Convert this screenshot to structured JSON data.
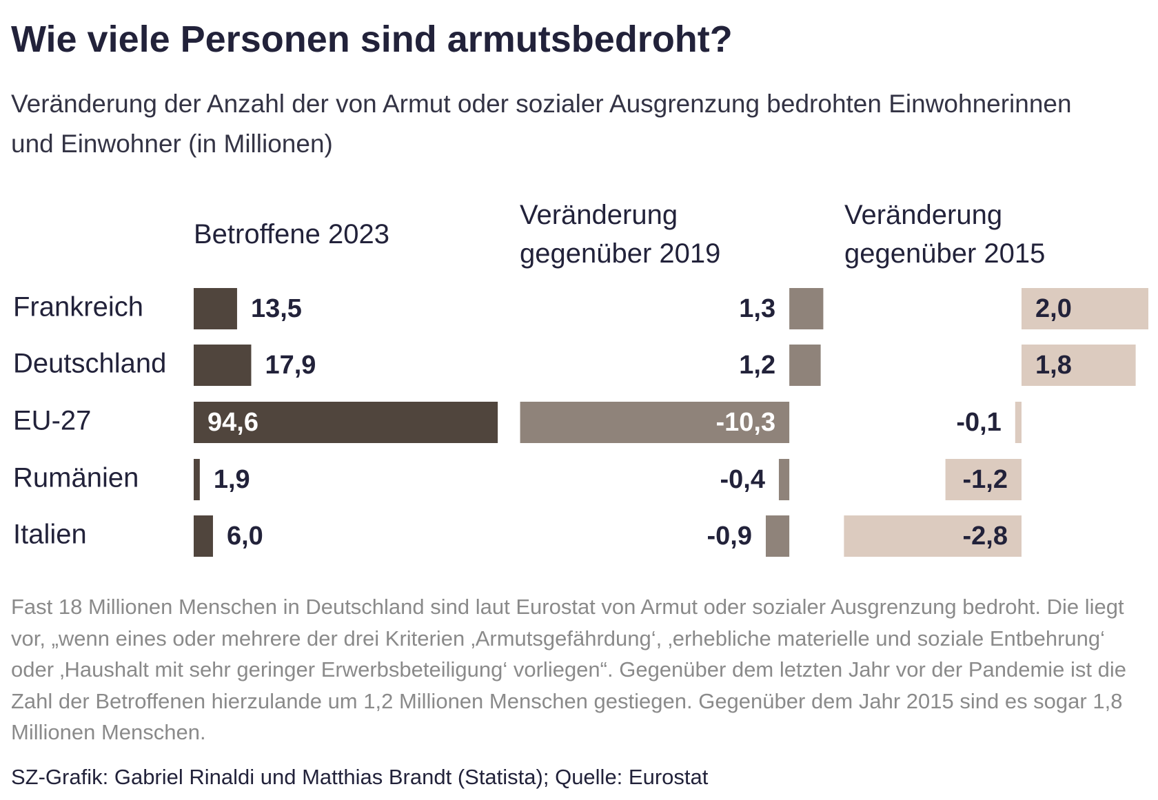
{
  "title": "Wie viele Personen sind armutsbedroht?",
  "subtitle": "Veränderung der Anzahl der von Armut oder sozialer Ausgrenzung bedrohten Einwohnerinnen und Einwohner (in Millionen)",
  "categories": [
    "Frankreich",
    "Deutschland",
    "EU-27",
    "Rumänien",
    "Italien"
  ],
  "chart_data": [
    {
      "type": "bar",
      "title": "Betroffene 2023",
      "values": [
        13.5,
        17.9,
        94.6,
        1.9,
        6.0
      ],
      "value_labels": [
        "13,5",
        "17,9",
        "94,6",
        "1,9",
        "6,0"
      ],
      "color": "#50453d",
      "xlim": [
        0,
        95
      ]
    },
    {
      "type": "bar",
      "title": "Veränderung gegenüber 2019",
      "values": [
        1.3,
        1.2,
        -10.3,
        -0.4,
        -0.9
      ],
      "value_labels": [
        "1,3",
        "1,2",
        "-10,3",
        "-0,4",
        "-0,9"
      ],
      "color": "#8f837a",
      "xlim": [
        -10.5,
        1.5
      ]
    },
    {
      "type": "bar",
      "title": "Veränderung gegenüber 2015",
      "values": [
        2.0,
        1.8,
        -0.1,
        -1.2,
        -2.8
      ],
      "value_labels": [
        "2,0",
        "1,8",
        "-0,1",
        "-1,2",
        "-2,8"
      ],
      "color": "#dccbbf",
      "xlim": [
        -3,
        2
      ]
    }
  ],
  "note": "Fast 18 Millionen Menschen in Deutschland sind laut Eurostat von Armut oder sozialer Ausgrenzung bedroht. Die liegt vor, „wenn eines oder mehrere der drei Kriterien ‚Armutsgefährdung‘, ‚erhebliche materielle und soziale Entbehrung‘ oder ‚Haushalt mit sehr geringer Erwerbsbeteiligung‘ vorliegen“. Gegenüber dem letzten Jahr vor der Pandemie ist die Zahl der Betroffenen hierzulande um 1,2 Millionen Menschen gestiegen. Gegenüber dem Jahr 2015 sind es sogar 1,8 Millionen Menschen.",
  "source": "SZ-Grafik: Gabriel Rinaldi und Matthias Brandt (Statista); Quelle: Eurostat"
}
